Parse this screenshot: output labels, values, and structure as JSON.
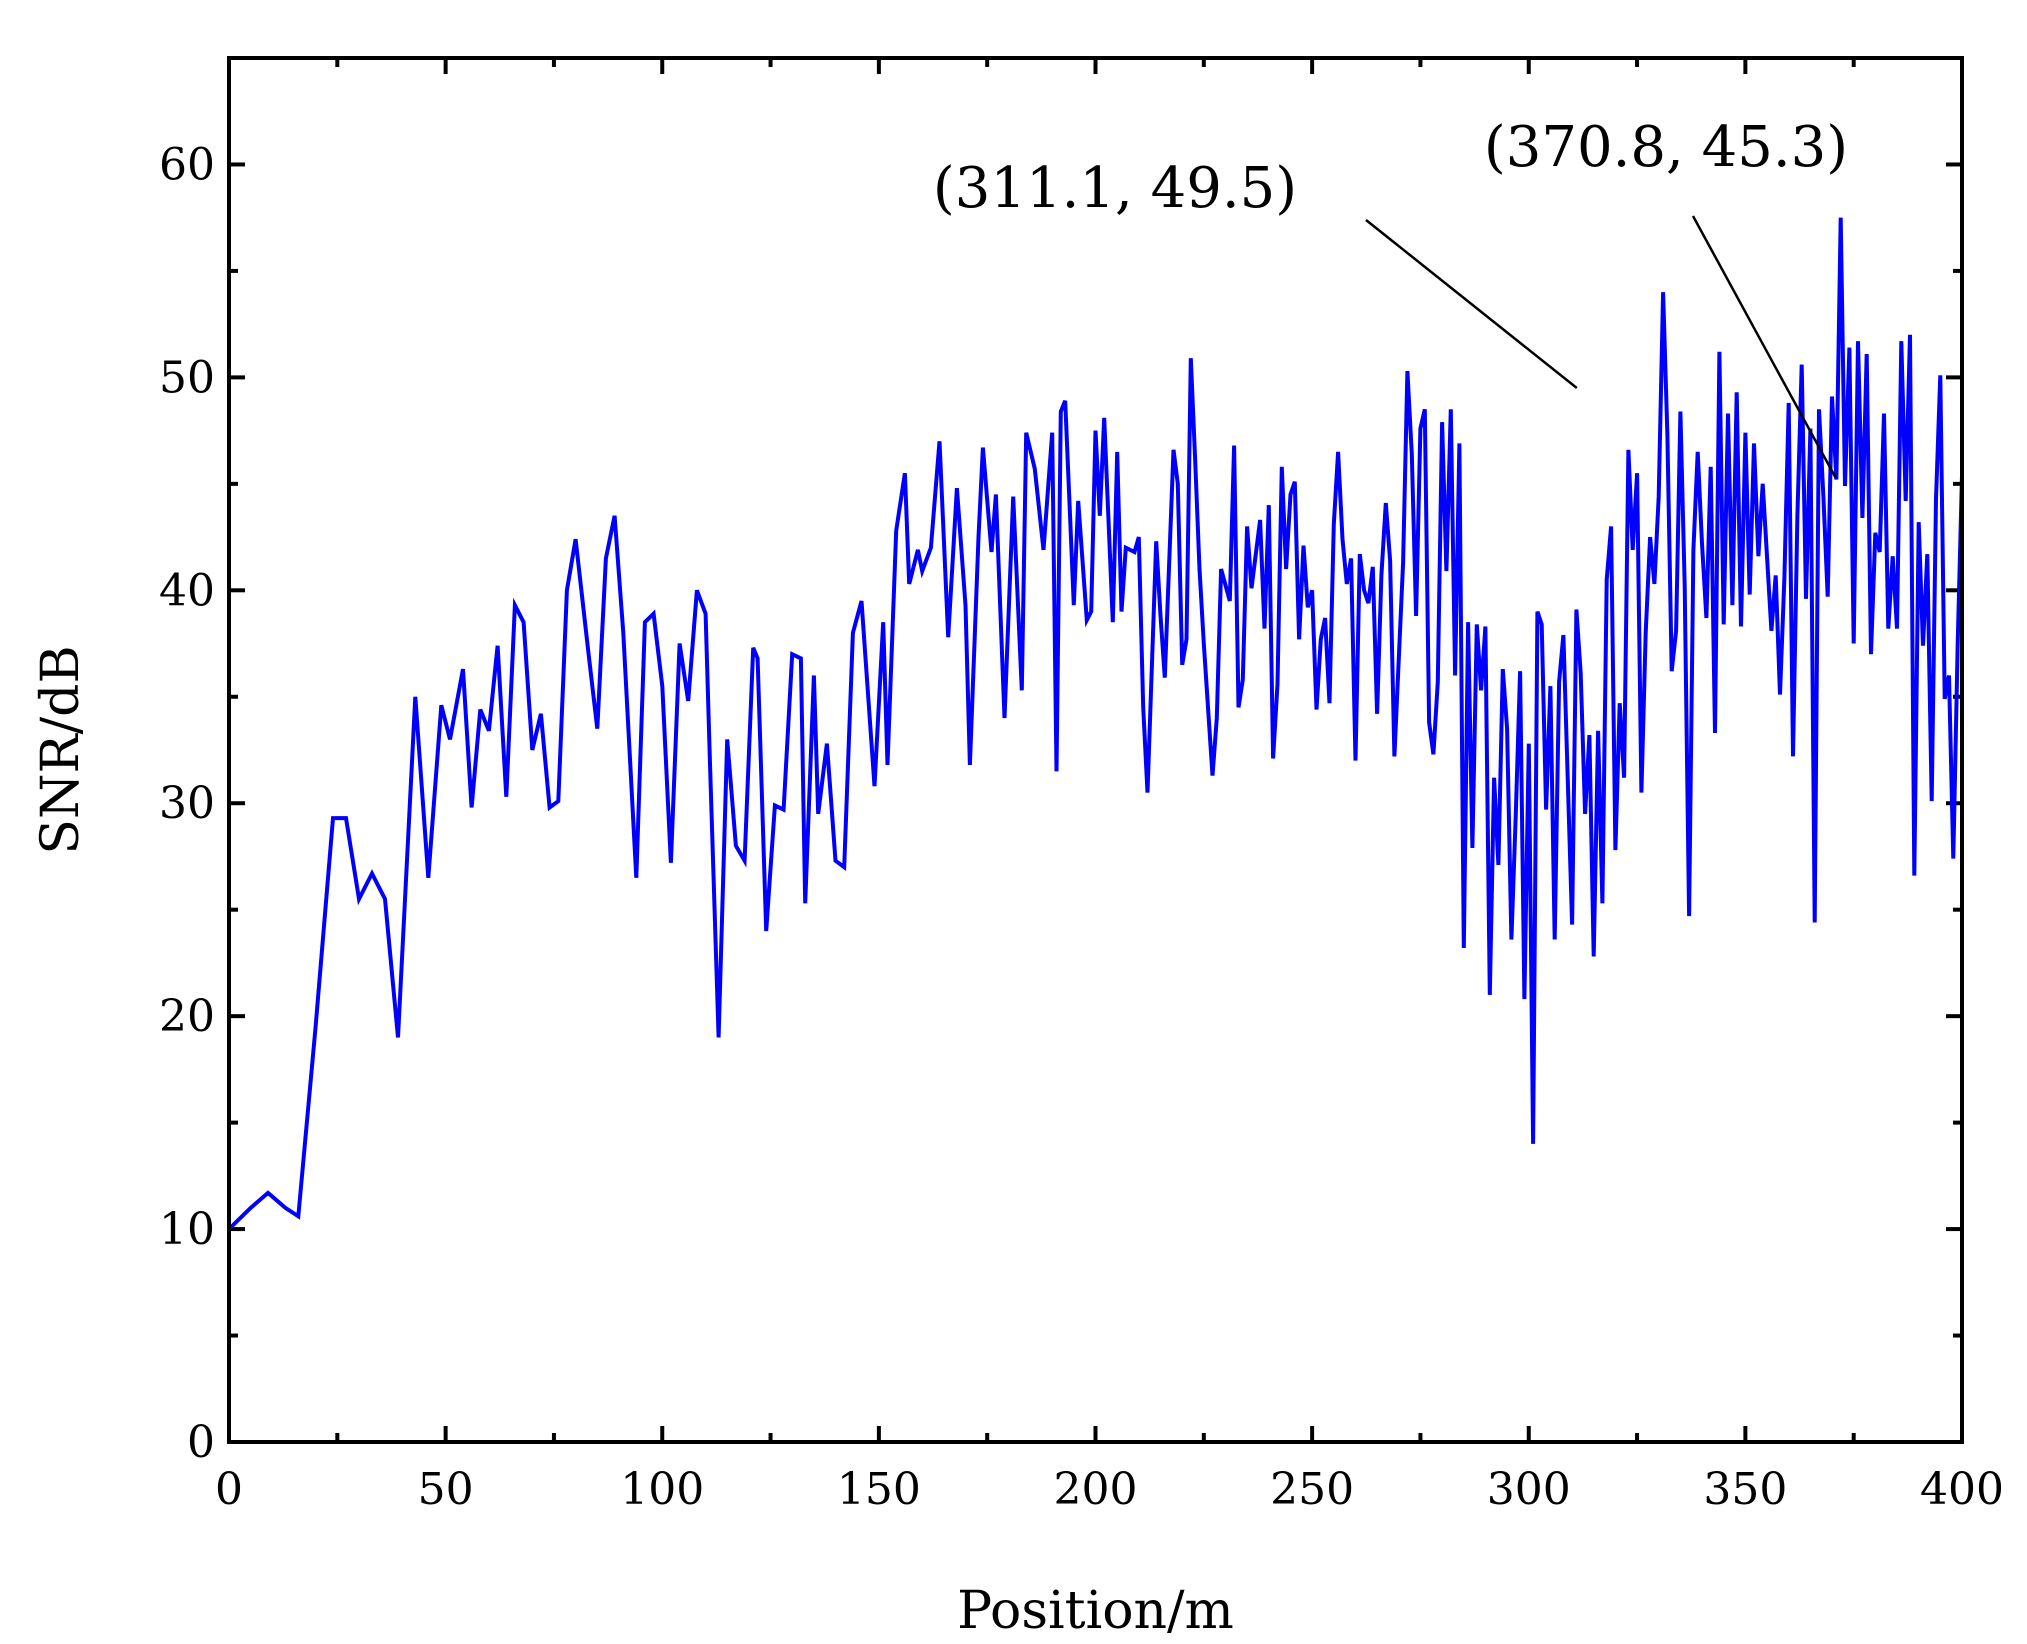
{
  "chart_data": {
    "type": "line",
    "title": "",
    "xlabel": "Position/m",
    "ylabel": "SNR/dB",
    "xlim": [
      0,
      400
    ],
    "ylim": [
      0,
      65
    ],
    "xticks": [
      0,
      50,
      100,
      150,
      200,
      250,
      300,
      350,
      400
    ],
    "yticks": [
      0,
      10,
      20,
      30,
      40,
      50,
      60
    ],
    "grid": false,
    "colors": {
      "series": "#0000ff",
      "axis": "#000000",
      "annotation_line": "#000000"
    },
    "series": [
      {
        "points": [
          [
            0,
            59
          ],
          [
            0,
            6.5
          ],
          [
            0,
            10
          ],
          [
            5,
            11
          ],
          [
            9,
            11.7
          ],
          [
            13,
            11
          ],
          [
            16,
            10.6
          ],
          [
            20,
            19.5
          ],
          [
            24,
            29.3
          ],
          [
            27,
            29.3
          ],
          [
            30,
            25.5
          ],
          [
            33,
            26.7
          ],
          [
            36,
            25.5
          ],
          [
            39,
            19
          ],
          [
            43,
            35
          ],
          [
            46,
            26.5
          ],
          [
            49,
            34.6
          ],
          [
            51,
            33
          ],
          [
            54,
            36.3
          ],
          [
            56,
            29.8
          ],
          [
            58,
            34.4
          ],
          [
            60,
            33.4
          ],
          [
            62,
            37.4
          ],
          [
            64,
            30.3
          ],
          [
            66,
            39.3
          ],
          [
            68,
            38.5
          ],
          [
            70,
            32.5
          ],
          [
            72,
            34.2
          ],
          [
            74,
            29.8
          ],
          [
            76,
            30.1
          ],
          [
            78,
            40
          ],
          [
            80,
            42.4
          ],
          [
            83,
            37
          ],
          [
            85,
            33.5
          ],
          [
            87,
            41.5
          ],
          [
            89,
            43.5
          ],
          [
            91,
            38
          ],
          [
            94,
            26.5
          ],
          [
            96,
            38.5
          ],
          [
            98,
            38.9
          ],
          [
            100,
            35.5
          ],
          [
            102,
            27.2
          ],
          [
            104,
            37.5
          ],
          [
            106,
            34.8
          ],
          [
            108,
            40
          ],
          [
            110,
            38.9
          ],
          [
            111,
            32
          ],
          [
            113,
            19
          ],
          [
            115,
            33
          ],
          [
            117,
            28
          ],
          [
            119,
            27.3
          ],
          [
            121,
            37.3
          ],
          [
            122,
            36.8
          ],
          [
            124,
            24
          ],
          [
            126,
            29.9
          ],
          [
            128,
            29.7
          ],
          [
            130,
            37
          ],
          [
            132,
            36.8
          ],
          [
            133,
            25.3
          ],
          [
            135,
            36
          ],
          [
            136,
            29.5
          ],
          [
            138,
            32.8
          ],
          [
            140,
            27.3
          ],
          [
            142,
            27
          ],
          [
            144,
            38
          ],
          [
            146,
            39.5
          ],
          [
            149,
            30.8
          ],
          [
            151,
            38.5
          ],
          [
            152,
            31.8
          ],
          [
            154,
            42.8
          ],
          [
            156,
            45.5
          ],
          [
            157,
            40.3
          ],
          [
            159,
            41.9
          ],
          [
            160,
            40.9
          ],
          [
            162,
            42
          ],
          [
            164,
            47
          ],
          [
            166,
            37.8
          ],
          [
            168,
            44.8
          ],
          [
            170,
            39.3
          ],
          [
            171,
            31.8
          ],
          [
            173,
            42.5
          ],
          [
            174,
            46.7
          ],
          [
            176,
            41.8
          ],
          [
            177,
            44.5
          ],
          [
            179,
            34
          ],
          [
            181,
            44.4
          ],
          [
            183,
            35.3
          ],
          [
            184,
            47.4
          ],
          [
            186,
            45.7
          ],
          [
            188,
            41.9
          ],
          [
            190,
            47.4
          ],
          [
            191,
            31.5
          ],
          [
            192,
            48.4
          ],
          [
            193,
            48.9
          ],
          [
            195,
            39.3
          ],
          [
            196,
            44.2
          ],
          [
            198,
            38.6
          ],
          [
            199,
            39
          ],
          [
            200,
            47.5
          ],
          [
            201,
            43.5
          ],
          [
            202,
            48.1
          ],
          [
            204,
            38.5
          ],
          [
            205,
            46.5
          ],
          [
            206,
            39
          ],
          [
            207,
            42
          ],
          [
            209,
            41.8
          ],
          [
            210,
            42.5
          ],
          [
            211,
            34.5
          ],
          [
            212,
            30.5
          ],
          [
            214,
            42.3
          ],
          [
            215,
            38.8
          ],
          [
            216,
            35.9
          ],
          [
            218,
            46.6
          ],
          [
            219,
            45
          ],
          [
            220,
            36.5
          ],
          [
            221,
            37.7
          ],
          [
            222,
            50.9
          ],
          [
            223,
            46.2
          ],
          [
            224,
            41
          ],
          [
            225,
            37.5
          ],
          [
            227,
            31.3
          ],
          [
            228,
            34
          ],
          [
            229,
            41
          ],
          [
            231,
            39.5
          ],
          [
            232,
            46.8
          ],
          [
            233,
            34.5
          ],
          [
            234,
            35.8
          ],
          [
            235,
            43
          ],
          [
            236,
            40.1
          ],
          [
            238,
            43.3
          ],
          [
            239,
            38.2
          ],
          [
            240,
            44
          ],
          [
            241,
            32.1
          ],
          [
            242,
            35.6
          ],
          [
            243,
            45.8
          ],
          [
            244,
            41
          ],
          [
            245,
            44.5
          ],
          [
            246,
            45.1
          ],
          [
            247,
            37.7
          ],
          [
            248,
            42.1
          ],
          [
            249,
            39.2
          ],
          [
            250,
            40
          ],
          [
            251,
            34.4
          ],
          [
            252,
            37.7
          ],
          [
            253,
            38.7
          ],
          [
            254,
            34.7
          ],
          [
            255,
            43.1
          ],
          [
            256,
            46.5
          ],
          [
            257,
            42.4
          ],
          [
            258,
            40.3
          ],
          [
            259,
            41.5
          ],
          [
            260,
            32
          ],
          [
            261,
            41.7
          ],
          [
            262,
            40
          ],
          [
            263,
            39.4
          ],
          [
            264,
            41.1
          ],
          [
            265,
            34.2
          ],
          [
            266,
            40.7
          ],
          [
            267,
            44.1
          ],
          [
            268,
            41.4
          ],
          [
            269,
            32.2
          ],
          [
            271,
            41.3
          ],
          [
            272,
            50.3
          ],
          [
            273,
            46.4
          ],
          [
            274,
            38.8
          ],
          [
            275,
            47.6
          ],
          [
            276,
            48.5
          ],
          [
            277,
            33.8
          ],
          [
            278,
            32.3
          ],
          [
            279,
            35.7
          ],
          [
            280,
            47.9
          ],
          [
            281,
            40.9
          ],
          [
            282,
            48.5
          ],
          [
            283,
            36
          ],
          [
            284,
            46.9
          ],
          [
            285,
            23.2
          ],
          [
            286,
            38.5
          ],
          [
            287,
            27.9
          ],
          [
            288,
            38.4
          ],
          [
            289,
            35.3
          ],
          [
            290,
            38.3
          ],
          [
            291,
            21
          ],
          [
            292,
            31.2
          ],
          [
            293,
            27.1
          ],
          [
            294,
            36.3
          ],
          [
            295,
            33.5
          ],
          [
            296,
            23.6
          ],
          [
            297,
            29.5
          ],
          [
            298,
            36.2
          ],
          [
            299,
            20.8
          ],
          [
            300,
            32.8
          ],
          [
            301,
            14
          ],
          [
            302,
            39
          ],
          [
            303,
            38.4
          ],
          [
            304,
            29.7
          ],
          [
            305,
            35.5
          ],
          [
            306,
            23.6
          ],
          [
            307,
            35.7
          ],
          [
            308,
            37.9
          ],
          [
            309,
            31.2
          ],
          [
            310,
            24.3
          ],
          [
            311,
            39.1
          ],
          [
            312,
            36.1
          ],
          [
            313,
            29.5
          ],
          [
            314,
            33.2
          ],
          [
            315,
            22.8
          ],
          [
            316,
            33.4
          ],
          [
            317,
            25.3
          ],
          [
            318,
            40.5
          ],
          [
            319,
            43
          ],
          [
            320,
            27.8
          ],
          [
            321,
            34.7
          ],
          [
            322,
            31.2
          ],
          [
            323,
            46.6
          ],
          [
            324,
            41.9
          ],
          [
            325,
            45.5
          ],
          [
            326,
            30.5
          ],
          [
            327,
            38
          ],
          [
            328,
            42.5
          ],
          [
            329,
            40.3
          ],
          [
            330,
            44.4
          ],
          [
            331,
            54
          ],
          [
            332,
            47.3
          ],
          [
            333,
            36.2
          ],
          [
            334,
            38.1
          ],
          [
            335,
            48.4
          ],
          [
            336,
            40.2
          ],
          [
            337,
            24.7
          ],
          [
            338,
            41.9
          ],
          [
            339,
            46.5
          ],
          [
            340,
            42.2
          ],
          [
            341,
            38.7
          ],
          [
            342,
            45.8
          ],
          [
            343,
            33.3
          ],
          [
            344,
            51.2
          ],
          [
            345,
            38.4
          ],
          [
            346,
            48.3
          ],
          [
            347,
            39.3
          ],
          [
            348,
            49.3
          ],
          [
            349,
            38.3
          ],
          [
            350,
            47.4
          ],
          [
            351,
            39.8
          ],
          [
            352,
            46.9
          ],
          [
            353,
            41.6
          ],
          [
            354,
            45
          ],
          [
            355,
            41.6
          ],
          [
            356,
            38.1
          ],
          [
            357,
            40.7
          ],
          [
            358,
            35.1
          ],
          [
            359,
            40.6
          ],
          [
            360,
            48.8
          ],
          [
            361,
            32.2
          ],
          [
            362,
            43.5
          ],
          [
            363,
            50.6
          ],
          [
            364,
            39.6
          ],
          [
            365,
            47.6
          ],
          [
            366,
            24.4
          ],
          [
            367,
            48.5
          ],
          [
            368,
            44.4
          ],
          [
            369,
            39.7
          ],
          [
            370,
            49.1
          ],
          [
            371,
            45.2
          ],
          [
            372,
            57.5
          ],
          [
            373,
            44.9
          ],
          [
            374,
            51.4
          ],
          [
            375,
            37.5
          ],
          [
            376,
            51.7
          ],
          [
            377,
            43.4
          ],
          [
            378,
            51.1
          ],
          [
            379,
            37
          ],
          [
            380,
            42.7
          ],
          [
            381,
            41.8
          ],
          [
            382,
            48.3
          ],
          [
            383,
            38.2
          ],
          [
            384,
            41.6
          ],
          [
            385,
            38.2
          ],
          [
            386,
            51.7
          ],
          [
            387,
            44.2
          ],
          [
            388,
            52
          ],
          [
            389,
            26.6
          ],
          [
            390,
            43.2
          ],
          [
            391,
            37.4
          ],
          [
            392,
            41.7
          ],
          [
            393,
            30.1
          ],
          [
            394,
            44.3
          ],
          [
            395,
            50.1
          ],
          [
            396,
            34.9
          ],
          [
            397,
            36
          ],
          [
            398,
            27.4
          ],
          [
            399,
            37.5
          ],
          [
            400,
            45.4
          ],
          [
            400,
            26
          ],
          [
            400,
            33.8
          ],
          [
            400,
            31.8
          ],
          [
            400,
            36.8
          ],
          [
            400,
            26.5
          ],
          [
            400,
            34.6
          ],
          [
            400,
            26.4
          ],
          [
            400,
            29.3
          ],
          [
            400,
            21.6
          ],
          [
            400,
            33.5
          ],
          [
            400,
            34
          ],
          [
            400,
            37
          ],
          [
            400,
            29
          ],
          [
            400,
            46.2
          ],
          [
            400,
            34.6
          ],
          [
            400,
            38.9
          ],
          [
            400,
            24
          ],
          [
            400,
            28.3
          ],
          [
            400,
            22.4
          ],
          [
            400,
            30.2
          ],
          [
            400,
            19.7
          ],
          [
            400,
            32.4
          ]
        ]
      }
    ],
    "annotations": [
      {
        "text": "(311.1, 49.5)",
        "target": [
          311.1,
          49.5
        ]
      },
      {
        "text": "(370.8, 45.3)",
        "target": [
          370.8,
          45.3
        ]
      }
    ]
  }
}
